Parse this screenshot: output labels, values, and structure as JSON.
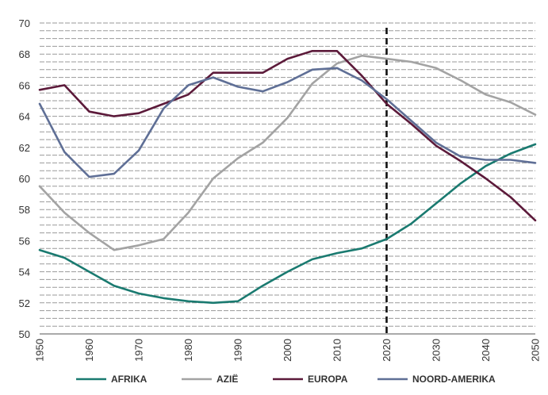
{
  "chart_data": {
    "type": "line",
    "x": [
      1950,
      1955,
      1960,
      1965,
      1970,
      1975,
      1980,
      1985,
      1990,
      1995,
      2000,
      2005,
      2010,
      2015,
      2020,
      2025,
      2030,
      2035,
      2040,
      2045,
      2050
    ],
    "xticks": [
      1950,
      1960,
      1970,
      1980,
      1990,
      2000,
      2010,
      2020,
      2030,
      2040,
      2050
    ],
    "yticks": [
      50,
      52,
      54,
      56,
      58,
      60,
      62,
      64,
      66,
      68,
      70
    ],
    "xlim": [
      1950,
      2050
    ],
    "ylim": [
      50,
      70
    ],
    "grid": "horizontal dashed",
    "reference_line_x": 2020,
    "legend_position": "bottom",
    "series": [
      {
        "name": "AFRIKA",
        "color": "#1a7a70",
        "values": [
          55.4,
          54.9,
          54.0,
          53.1,
          52.6,
          52.3,
          52.1,
          52.0,
          52.1,
          53.1,
          54.0,
          54.8,
          55.2,
          55.5,
          56.1,
          57.1,
          58.4,
          59.7,
          60.8,
          61.6,
          62.2
        ]
      },
      {
        "name": "AZIË",
        "color": "#a3a3a3",
        "values": [
          59.5,
          57.8,
          56.5,
          55.4,
          55.7,
          56.1,
          57.8,
          60.0,
          61.3,
          62.3,
          63.9,
          66.1,
          67.4,
          67.9,
          67.7,
          67.5,
          67.1,
          66.3,
          65.4,
          64.9,
          64.1
        ]
      },
      {
        "name": "EUROPA",
        "color": "#5c1a3a",
        "values": [
          65.7,
          66.0,
          64.3,
          64.0,
          64.2,
          64.8,
          65.4,
          66.8,
          66.8,
          66.8,
          67.7,
          68.2,
          68.2,
          66.6,
          64.8,
          63.5,
          62.1,
          61.1,
          60.0,
          58.8,
          57.3
        ]
      },
      {
        "name": "NOORD-AMERIKA",
        "color": "#5f6f96",
        "values": [
          64.8,
          61.7,
          60.1,
          60.3,
          61.8,
          64.5,
          66.0,
          66.5,
          65.9,
          65.6,
          66.2,
          67.0,
          67.1,
          66.3,
          65.1,
          63.7,
          62.3,
          61.4,
          61.2,
          61.2,
          61.0
        ]
      }
    ]
  }
}
